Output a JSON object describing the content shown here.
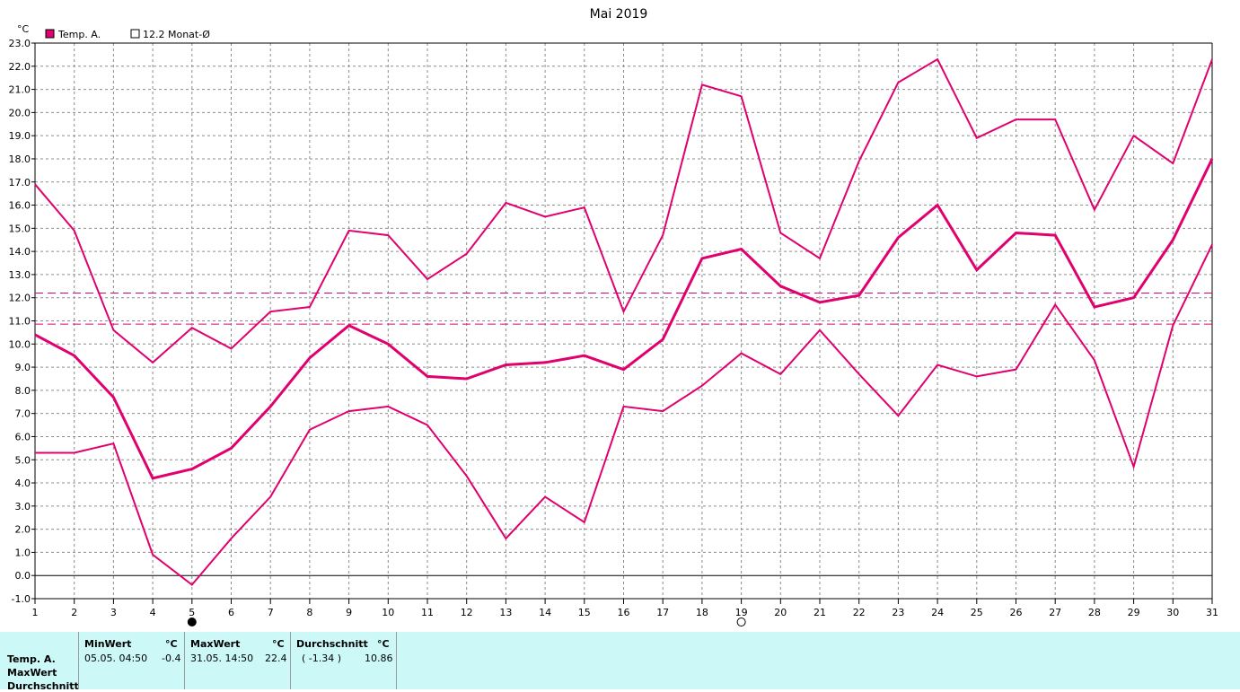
{
  "chart_data": {
    "type": "line",
    "title": "Mai 2019",
    "unit_label": "°C",
    "legend": [
      {
        "label": "Temp. A.",
        "swatch": "filled",
        "color": "#e0006e"
      },
      {
        "label": "12.2 Monat-Ø",
        "swatch": "hollow",
        "color": "#e0006e"
      }
    ],
    "legend_placement": "top-left",
    "grid": true,
    "x": [
      1,
      2,
      3,
      4,
      5,
      6,
      7,
      8,
      9,
      10,
      11,
      12,
      13,
      14,
      15,
      16,
      17,
      18,
      19,
      20,
      21,
      22,
      23,
      24,
      25,
      26,
      27,
      28,
      29,
      30,
      31
    ],
    "xlim": [
      1,
      31
    ],
    "ylim": [
      -1.0,
      23.0
    ],
    "ytick_step": 1.0,
    "series": [
      {
        "role": "max",
        "values": [
          16.9,
          14.9,
          10.6,
          9.2,
          10.7,
          9.8,
          11.4,
          11.6,
          14.9,
          14.7,
          12.8,
          13.9,
          16.1,
          15.5,
          15.9,
          11.4,
          14.7,
          21.2,
          20.7,
          14.8,
          13.7,
          17.9,
          21.3,
          22.3,
          18.9,
          19.7,
          19.7,
          15.8,
          19.0,
          17.8,
          22.3
        ]
      },
      {
        "role": "mean",
        "values": [
          10.4,
          9.5,
          7.7,
          4.2,
          4.6,
          5.5,
          7.3,
          9.4,
          10.8,
          10.0,
          8.6,
          8.5,
          9.1,
          9.2,
          9.5,
          8.9,
          10.2,
          13.7,
          14.1,
          12.5,
          11.8,
          12.1,
          14.6,
          16.0,
          13.2,
          14.8,
          14.7,
          11.6,
          12.0,
          14.5,
          18.0
        ]
      },
      {
        "role": "min",
        "values": [
          5.3,
          5.3,
          5.7,
          0.9,
          -0.4,
          1.6,
          3.4,
          6.3,
          7.1,
          7.3,
          6.5,
          4.3,
          1.6,
          3.4,
          2.3,
          7.3,
          7.1,
          8.2,
          9.6,
          8.7,
          10.6,
          8.7,
          6.9,
          9.1,
          8.6,
          8.9,
          11.7,
          9.3,
          4.7,
          10.8,
          14.3
        ]
      }
    ],
    "reference_lines": [
      {
        "value": 12.2,
        "style": "dashed"
      },
      {
        "value": 10.86,
        "style": "dashed"
      }
    ],
    "moon_phases": [
      {
        "day": 5,
        "phase": "new-moon"
      },
      {
        "day": 19,
        "phase": "full-moon"
      }
    ]
  },
  "stats": {
    "row_labels": [
      "Temp. A.",
      "MaxWert",
      "Durchschnitt"
    ],
    "min_header": "MinWert",
    "min_unit": "°C",
    "min_date": "05.05.  04:50",
    "min_value": "-0.4",
    "max_header": "MaxWert",
    "max_unit": "°C",
    "max_date": "31.05.  14:50",
    "max_value": "22.4",
    "avg_header": "Durchschnitt",
    "avg_unit": "°C",
    "avg_delta": "( -1.34 )",
    "avg_value": "10.86"
  }
}
